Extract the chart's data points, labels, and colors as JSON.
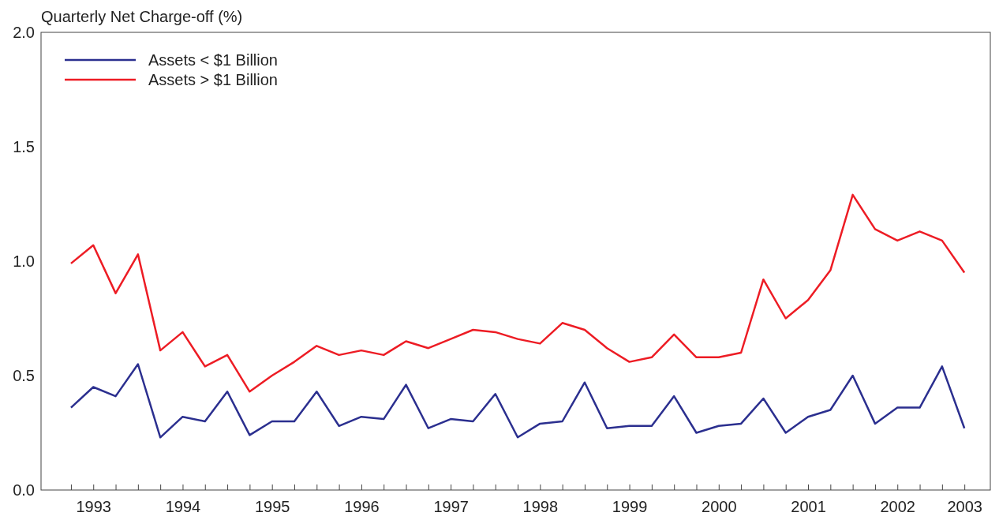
{
  "chart_data": {
    "type": "line",
    "title": "Quarterly Net Charge-off (%)",
    "categories": [
      null,
      "1993",
      null,
      null,
      null,
      "1994",
      null,
      null,
      null,
      "1995",
      null,
      null,
      null,
      "1996",
      null,
      null,
      null,
      "1997",
      null,
      null,
      null,
      "1998",
      null,
      null,
      null,
      "1999",
      null,
      null,
      null,
      "2000",
      null,
      null,
      null,
      "2001",
      null,
      null,
      null,
      "2002",
      null,
      null,
      "2003"
    ],
    "series": [
      {
        "name": "Assets < $1 Billion",
        "color": "#2b2f8f",
        "values": [
          0.36,
          0.45,
          0.41,
          0.55,
          0.23,
          0.32,
          0.3,
          0.43,
          0.24,
          0.3,
          0.3,
          0.43,
          0.28,
          0.32,
          0.31,
          0.46,
          0.27,
          0.31,
          0.3,
          0.42,
          0.23,
          0.29,
          0.3,
          0.47,
          0.27,
          0.28,
          0.28,
          0.41,
          0.25,
          0.28,
          0.29,
          0.4,
          0.25,
          0.32,
          0.35,
          0.5,
          0.29,
          0.36,
          0.36,
          0.54,
          0.27
        ]
      },
      {
        "name": "Assets > $1 Billion",
        "color": "#ed1c24",
        "values": [
          0.99,
          1.07,
          0.86,
          1.03,
          0.61,
          0.69,
          0.54,
          0.59,
          0.43,
          0.5,
          0.56,
          0.63,
          0.59,
          0.61,
          0.59,
          0.65,
          0.62,
          0.66,
          0.7,
          0.69,
          0.66,
          0.64,
          0.73,
          0.7,
          0.62,
          0.56,
          0.58,
          0.68,
          0.58,
          0.58,
          0.6,
          0.92,
          0.75,
          0.83,
          0.96,
          1.29,
          1.14,
          1.09,
          1.13,
          1.09,
          0.95
        ]
      }
    ],
    "ylim": [
      0,
      2
    ],
    "yticks": [
      {
        "value": 0,
        "label": "0.0"
      },
      {
        "value": 0.5,
        "label": "0.5"
      },
      {
        "value": 1,
        "label": "1.0"
      },
      {
        "value": 1.5,
        "label": "1.5"
      },
      {
        "value": 2,
        "label": "2.0"
      }
    ],
    "legend": "top left",
    "grid": false,
    "marker": "none",
    "line_style": "solid"
  }
}
